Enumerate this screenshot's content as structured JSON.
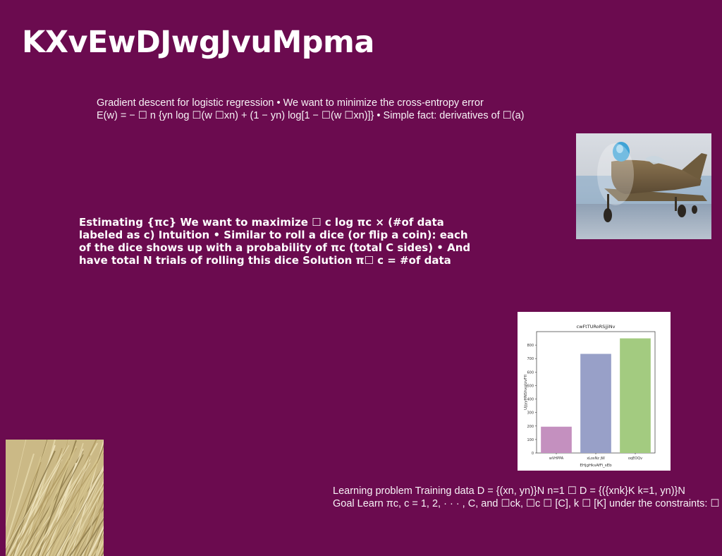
{
  "slide": {
    "title": "KXvEwDJwgJvuMpma",
    "background_color": "#6b0b4f"
  },
  "blocks": {
    "gradient": {
      "line1": "Gradient descent for logistic regression • We want to minimize the cross-entropy error",
      "line2": "E(w) = − ☐ n {yn log ☐(w ☐xn) + (1 − yn) log[1 − ☐(w ☐xn)]} • Simple fact: derivatives of ☐(a)"
    },
    "estimating": {
      "line1": "Estimating {πc} We want to maximize ☐ c log πc × (#of data",
      "line2": "labeled as c) Intuition • Similar to roll a dice (or flip a coin): each",
      "line3": "of the dice shows up with a probability of πc (total C sides) • And",
      "line4": "have total N trials of rolling this dice Solution π☐ c = #of data"
    },
    "learning": {
      "line1": "Learning problem Training data D = {(xn, yn)}N n=1 ☐ D = {({xnk}K k=1, yn)}N",
      "line2": "Goal Learn πc, c = 1, 2, · · · , C, and ☐ck, ☐c ☐ [C], k ☐ [K] under the constraints: ☐"
    }
  },
  "images": {
    "plane": "airplane-photo",
    "straw": "straw-texture-photo"
  },
  "chart_data": {
    "type": "bar",
    "title": "cwFtTURoRSjjiNv",
    "xlabel": "EHjgHksAfFi_sEb",
    "ylabel": "UjjyyHNShxglzvFfI",
    "categories": [
      "wVHPPA",
      "xLosNz jW",
      "oqEOQv"
    ],
    "values": [
      195,
      735,
      850
    ],
    "colors": [
      "#c490bf",
      "#98a0c8",
      "#a3cb80"
    ],
    "ylim": [
      0,
      900
    ],
    "yticks": [
      0,
      100,
      200,
      300,
      400,
      500,
      600,
      700,
      800
    ],
    "grid": false
  }
}
